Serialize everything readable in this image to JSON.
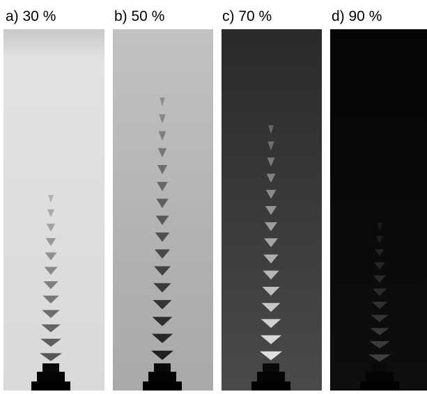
{
  "panels": [
    {
      "label": "a) 30 %"
    },
    {
      "label": "b) 50 %"
    },
    {
      "label": "c) 70 %"
    },
    {
      "label": "d) 90 %"
    }
  ]
}
